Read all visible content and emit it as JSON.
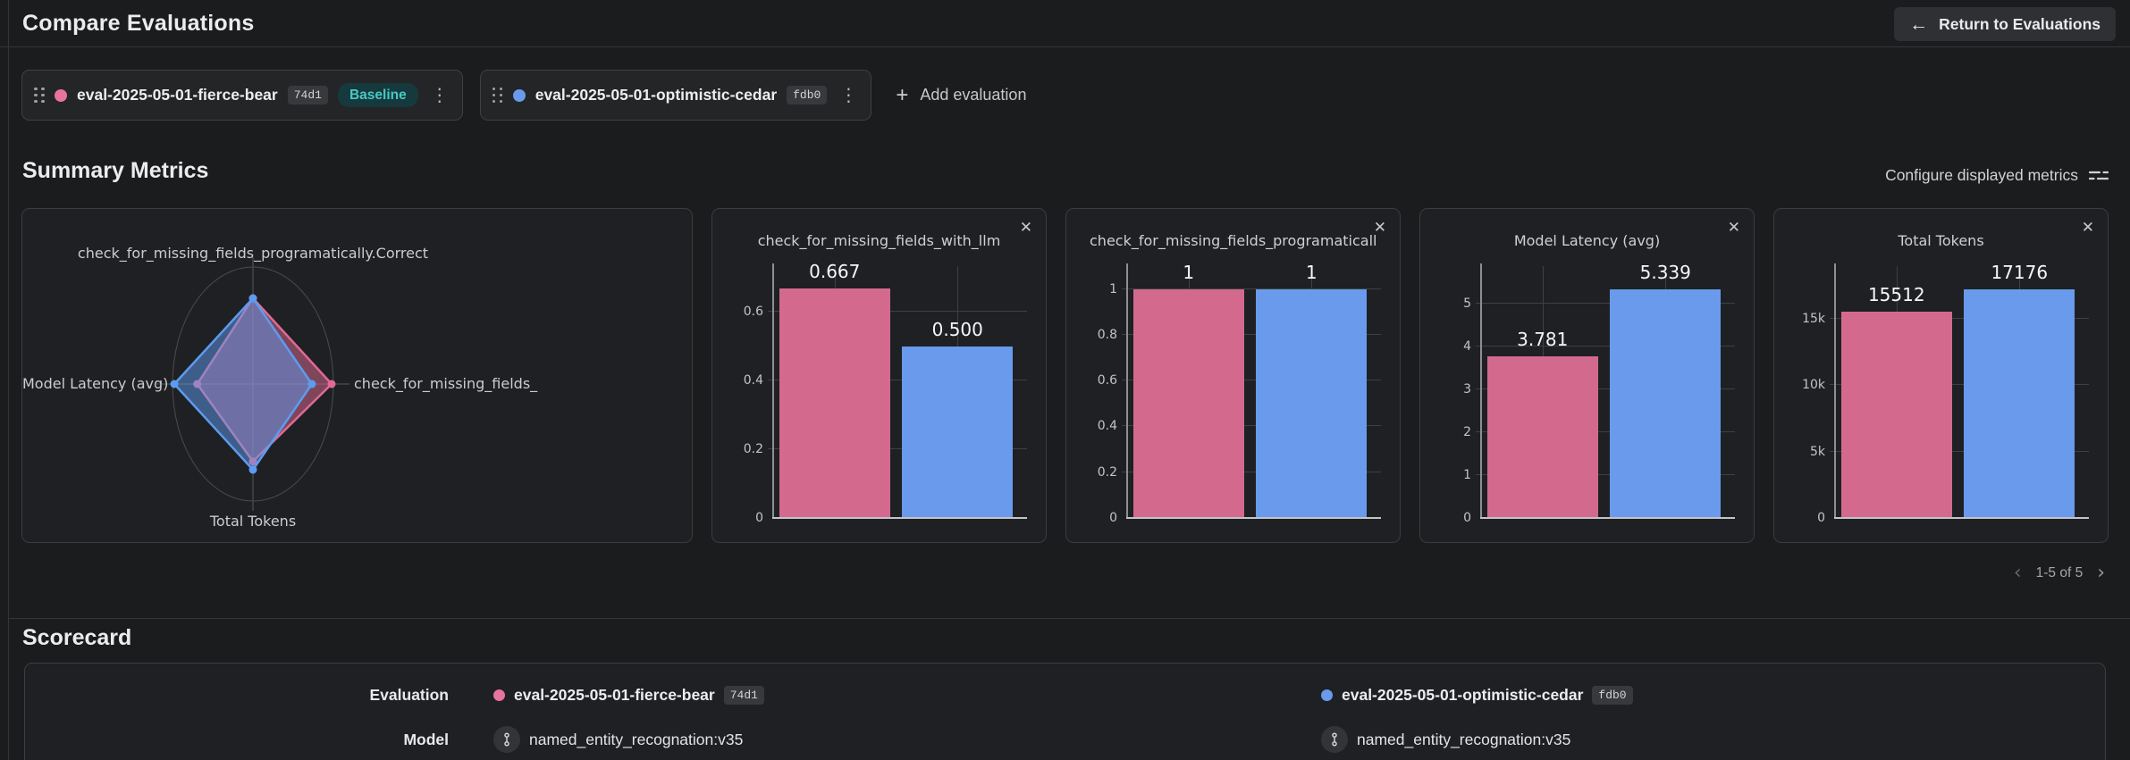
{
  "icons": {
    "back_arrow": "←",
    "plus": "+",
    "close": "✕",
    "kebab": "⋮",
    "prev": "‹",
    "next": "›"
  },
  "header": {
    "title": "Compare Evaluations",
    "return_button_label": "Return to Evaluations"
  },
  "evaluations": [
    {
      "name": "eval-2025-05-01-fierce-bear",
      "id_badge": "74d1",
      "baseline_badge": "Baseline",
      "dot_color": "#e8739f"
    },
    {
      "name": "eval-2025-05-01-optimistic-cedar",
      "id_badge": "fdb0",
      "dot_color": "#699aec"
    }
  ],
  "toolbar": {
    "add_evaluation_label": "Add evaluation"
  },
  "summary_metrics": {
    "title": "Summary Metrics",
    "configure_label": "Configure displayed metrics",
    "pagination_label": "1-5 of 5"
  },
  "series_colors": {
    "baseline_pink": "#d4698e",
    "comparison_blue": "#699aec"
  },
  "chart_data": [
    {
      "type": "radar",
      "axes": [
        "check_for_missing_fields_programatically.Correct",
        "check_for_missing_fields_",
        "Total Tokens",
        "Model Latency (avg)"
      ],
      "axis_max": [
        1,
        0.667,
        17176,
        5.339
      ],
      "series": [
        {
          "name": "eval-2025-05-01-fierce-bear",
          "color": "#e06a93",
          "values": [
            1,
            0.667,
            15512,
            3.781
          ]
        },
        {
          "name": "eval-2025-05-01-optimistic-cedar",
          "color": "#5d9bf0",
          "values": [
            1,
            0.5,
            17176,
            5.339
          ]
        }
      ]
    },
    {
      "type": "bar",
      "title": "check_for_missing_fields_with_llm",
      "categories": [
        "eval-2025-05-01-fierce-bear",
        "eval-2025-05-01-optimistic-cedar"
      ],
      "values": [
        0.667,
        0.5
      ],
      "value_labels": [
        "0.667",
        "0.500"
      ],
      "ytick_values": [
        0,
        0.2,
        0.4,
        0.6
      ],
      "ytick_labels": [
        "0",
        "0.2",
        "0.4",
        "0.6"
      ],
      "ylim": [
        0,
        0.733
      ]
    },
    {
      "type": "bar",
      "title": "check_for_missing_fields_programatically.Correct",
      "categories": [
        "eval-2025-05-01-fierce-bear",
        "eval-2025-05-01-optimistic-cedar"
      ],
      "values": [
        1,
        1
      ],
      "value_labels": [
        "1",
        "1"
      ],
      "ytick_values": [
        0,
        0.2,
        0.4,
        0.6,
        0.8,
        1
      ],
      "ytick_labels": [
        "0",
        "0.2",
        "0.4",
        "0.6",
        "0.8",
        "1"
      ],
      "ylim": [
        0,
        1.1
      ]
    },
    {
      "type": "bar",
      "title": "Model Latency (avg)",
      "categories": [
        "eval-2025-05-01-fierce-bear",
        "eval-2025-05-01-optimistic-cedar"
      ],
      "values": [
        3.781,
        5.339
      ],
      "value_labels": [
        "3.781",
        "5.339"
      ],
      "ytick_values": [
        0,
        1,
        2,
        3,
        4,
        5
      ],
      "ytick_labels": [
        "0",
        "1",
        "2",
        "3",
        "4",
        "5"
      ],
      "ylim": [
        0,
        5.88
      ]
    },
    {
      "type": "bar",
      "title": "Total Tokens",
      "categories": [
        "eval-2025-05-01-fierce-bear",
        "eval-2025-05-01-optimistic-cedar"
      ],
      "values": [
        15512,
        17176
      ],
      "value_labels": [
        "15512",
        "17176"
      ],
      "ytick_values": [
        0,
        5000,
        10000,
        15000
      ],
      "ytick_labels": [
        "0",
        "5k",
        "10k",
        "15k"
      ],
      "ylim": [
        0,
        18930
      ]
    }
  ],
  "scorecard": {
    "title": "Scorecard",
    "row_labels": [
      "Evaluation",
      "Model"
    ],
    "models": [
      {
        "name": "named_entity_recognation:v35"
      },
      {
        "name": "named_entity_recognation:v35"
      }
    ]
  }
}
